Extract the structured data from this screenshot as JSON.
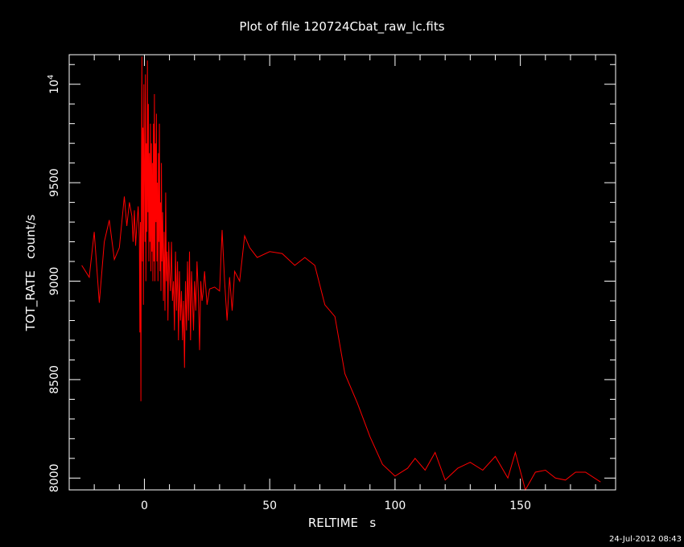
{
  "chart_data": {
    "type": "line",
    "title": "Plot of file 120724Cbat_raw_lc.fits",
    "xlabel": "RELTIME   s",
    "ylabel": "TOT_RATE   count/s",
    "xlim": [
      -30,
      188
    ],
    "ylim": [
      7940,
      10150
    ],
    "x_ticks": [
      0,
      50,
      100,
      150
    ],
    "y_ticks": [
      {
        "value": 8000,
        "label": "8000"
      },
      {
        "value": 8500,
        "label": "8500"
      },
      {
        "value": 9000,
        "label": "9000"
      },
      {
        "value": 9500,
        "label": "9500"
      },
      {
        "value": 10000,
        "label": "10",
        "sup": "4"
      }
    ],
    "grid": false,
    "legend": "none",
    "series": [
      {
        "color": "#ff0000",
        "x": [
          -25,
          -22,
          -20,
          -18,
          -16,
          -14,
          -12,
          -10,
          -8,
          -7,
          -6,
          -5,
          -4.5,
          -4,
          -3.5,
          -3,
          -2.5,
          -2,
          -1.8,
          -1.6,
          -1.4,
          -1.2,
          -1,
          -0.8,
          -0.6,
          -0.4,
          -0.2,
          0,
          0.2,
          0.4,
          0.6,
          0.8,
          1,
          1.2,
          1.4,
          1.6,
          1.8,
          2,
          2.2,
          2.4,
          2.6,
          2.8,
          3,
          3.2,
          3.4,
          3.6,
          3.8,
          4,
          4.2,
          4.4,
          4.6,
          4.8,
          5,
          5.2,
          5.4,
          5.6,
          5.8,
          6,
          6.2,
          6.4,
          6.6,
          6.8,
          7,
          7.3,
          7.6,
          7.9,
          8.2,
          8.5,
          8.8,
          9.1,
          9.4,
          9.7,
          10,
          10.4,
          10.8,
          11.2,
          11.6,
          12,
          12.4,
          12.8,
          13.2,
          13.6,
          14,
          14.4,
          14.8,
          15.2,
          15.6,
          16,
          16.4,
          16.8,
          17.2,
          17.6,
          18,
          18.4,
          18.8,
          19.2,
          19.6,
          20,
          20.5,
          21,
          21.5,
          22,
          22.5,
          23,
          23.5,
          24,
          25,
          26,
          28,
          30,
          31,
          32,
          33,
          34,
          35,
          36,
          38,
          40,
          42,
          45,
          50,
          55,
          60,
          64,
          68,
          72,
          76,
          80,
          85,
          90,
          95,
          100,
          105,
          108,
          112,
          116,
          120,
          125,
          130,
          135,
          140,
          145,
          148,
          152,
          156,
          160,
          164,
          168,
          172,
          176,
          182
        ],
        "y": [
          9080,
          9020,
          9250,
          8890,
          9200,
          9310,
          9110,
          9170,
          9430,
          9280,
          9400,
          9330,
          9200,
          9360,
          9180,
          9290,
          9380,
          9220,
          8740,
          9300,
          8390,
          9500,
          10140,
          9100,
          9780,
          8880,
          10000,
          9600,
          9200,
          10050,
          9000,
          9700,
          9250,
          10120,
          9350,
          9900,
          9100,
          9650,
          9200,
          9800,
          9050,
          9700,
          9150,
          9600,
          9000,
          9800,
          9100,
          9950,
          9000,
          9700,
          9300,
          9850,
          9100,
          9500,
          9000,
          9650,
          9200,
          9800,
          9050,
          9400,
          8950,
          9600,
          9100,
          9350,
          8900,
          9250,
          8850,
          9450,
          9000,
          9150,
          8800,
          9200,
          9050,
          8950,
          9200,
          8900,
          9000,
          8750,
          9150,
          8850,
          9100,
          8700,
          9050,
          8800,
          8950,
          8700,
          8900,
          8560,
          9000,
          8750,
          9100,
          8800,
          9150,
          8700,
          9050,
          8900,
          8750,
          9000,
          8850,
          9100,
          8950,
          8650,
          9000,
          8900,
          8950,
          9050,
          8880,
          8960,
          8970,
          8950,
          9260,
          9000,
          8800,
          9020,
          8850,
          9050,
          9000,
          9230,
          9170,
          9120,
          9150,
          9140,
          9080,
          9120,
          9080,
          8880,
          8820,
          8530,
          8380,
          8210,
          8070,
          8010,
          8050,
          8100,
          8040,
          8130,
          7990,
          8050,
          8080,
          8040,
          8110,
          8000,
          8130,
          7940,
          8030,
          8040,
          8000,
          7990,
          8030,
          8030,
          7980
        ]
      }
    ]
  },
  "timestamp": "24-Jul-2012 08:43"
}
